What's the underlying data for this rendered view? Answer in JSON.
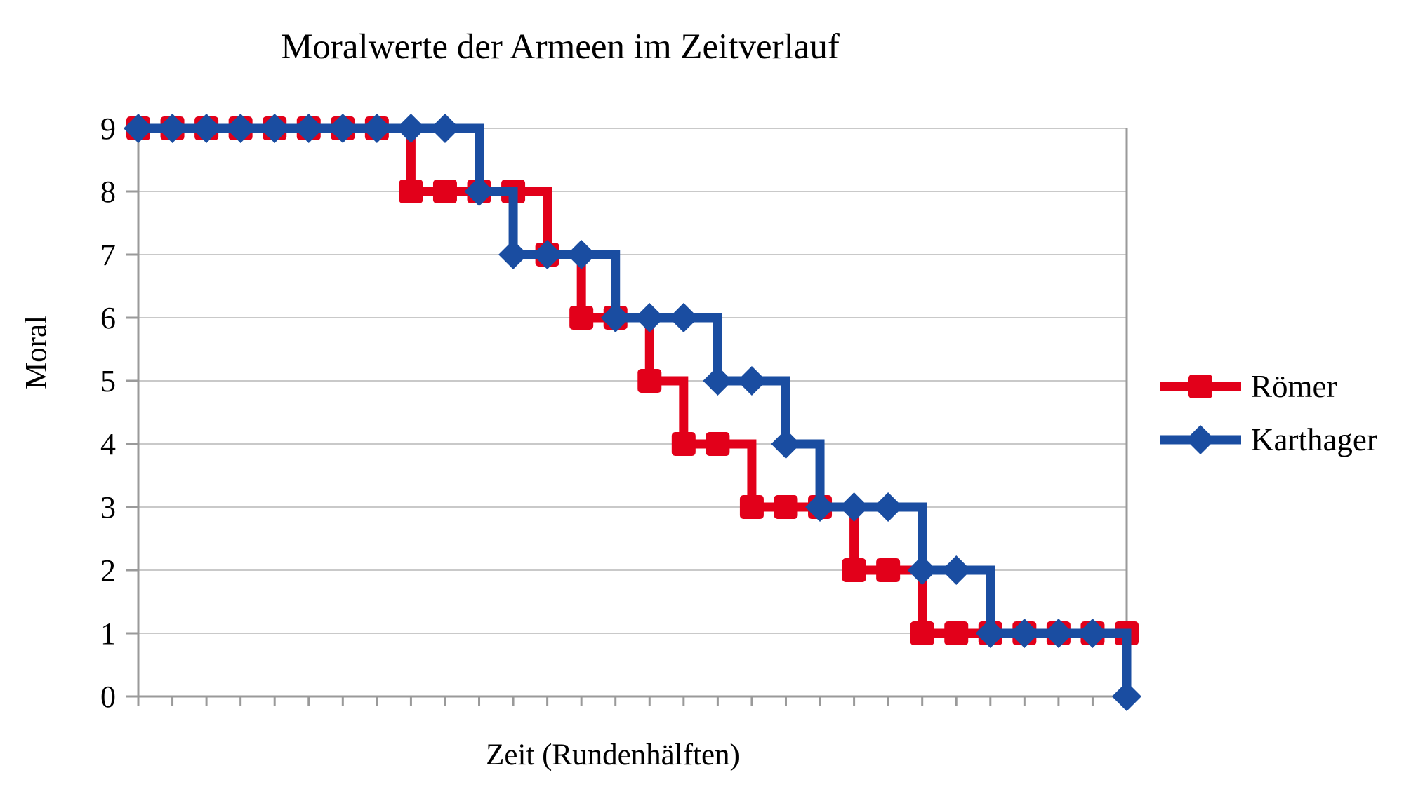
{
  "title": "Moralwerte der Armeen im Zeitverlauf",
  "chart_data": {
    "type": "line",
    "step": "after",
    "title": "Moralwerte der Armeen im Zeitverlauf",
    "xlabel": "Zeit (Rundenhälften)",
    "ylabel": "Moral",
    "x": [
      1,
      2,
      3,
      4,
      5,
      6,
      7,
      8,
      9,
      10,
      11,
      12,
      13,
      14,
      15,
      16,
      17,
      18,
      19,
      20,
      21,
      22,
      23,
      24,
      25,
      26,
      27,
      28,
      29,
      30
    ],
    "yticks": [
      0,
      1,
      2,
      3,
      4,
      5,
      6,
      7,
      8,
      9
    ],
    "ylim": [
      0,
      9
    ],
    "grid": "horizontal",
    "legend_position": "right",
    "series": [
      {
        "name": "Römer",
        "marker": "square",
        "color": "#e2001a",
        "values": [
          9,
          9,
          9,
          9,
          9,
          9,
          9,
          9,
          8,
          8,
          8,
          8,
          7,
          6,
          6,
          5,
          4,
          4,
          3,
          3,
          3,
          2,
          2,
          1,
          1,
          1,
          1,
          1,
          1,
          1
        ]
      },
      {
        "name": "Karthager",
        "marker": "diamond",
        "color": "#1a4da1",
        "values": [
          9,
          9,
          9,
          9,
          9,
          9,
          9,
          9,
          9,
          9,
          8,
          7,
          7,
          7,
          6,
          6,
          6,
          5,
          5,
          4,
          3,
          3,
          3,
          2,
          2,
          1,
          1,
          1,
          1,
          0
        ]
      }
    ],
    "colors": {
      "background": "#ffffff",
      "gridline": "#c9c9c9",
      "axis": "#9a9a9a",
      "text": "#000000"
    }
  }
}
